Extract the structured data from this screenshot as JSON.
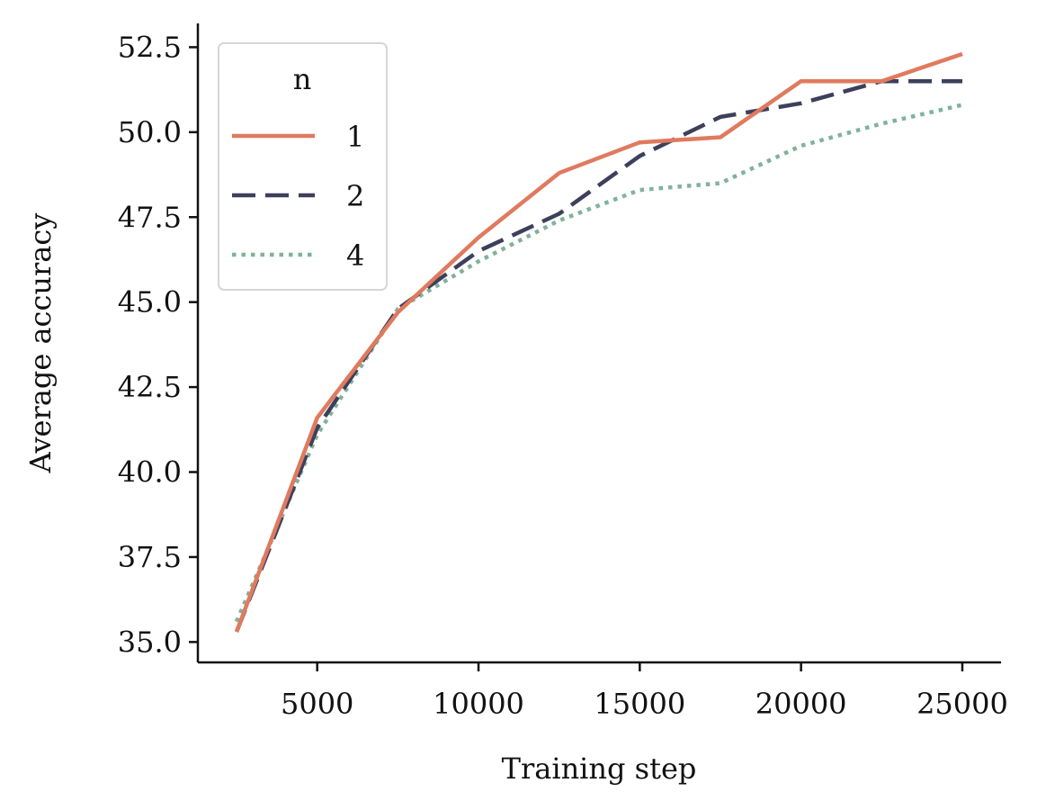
{
  "chart_data": {
    "type": "line",
    "xlabel": "Training step",
    "ylabel": "Average accuracy",
    "xlim": [
      1300,
      26200
    ],
    "ylim": [
      34.4,
      53.2
    ],
    "xticks": [
      5000,
      10000,
      15000,
      20000,
      25000
    ],
    "yticks": [
      35.0,
      37.5,
      40.0,
      42.5,
      45.0,
      47.5,
      50.0,
      52.5
    ],
    "ytick_labels": [
      "35.0",
      "37.5",
      "40.0",
      "42.5",
      "45.0",
      "47.5",
      "50.0",
      "52.5"
    ],
    "grid": false,
    "legend": {
      "title": "n",
      "placement": "top-left"
    },
    "x": [
      2500,
      5000,
      7500,
      10000,
      12500,
      15000,
      17500,
      20000,
      22500,
      25000
    ],
    "series": [
      {
        "name": "1",
        "color": "#e07a5f",
        "dash": "solid",
        "values": [
          35.3,
          41.6,
          44.7,
          46.9,
          48.8,
          49.7,
          49.85,
          51.5,
          51.5,
          52.3
        ]
      },
      {
        "name": "2",
        "color": "#3d405b",
        "dash": "dashed",
        "values": [
          35.3,
          41.3,
          44.8,
          46.5,
          47.6,
          49.3,
          50.45,
          50.85,
          51.5,
          51.5
        ]
      },
      {
        "name": "4",
        "color": "#81b29a",
        "dash": "dotted",
        "values": [
          35.6,
          41.1,
          44.8,
          46.2,
          47.4,
          48.3,
          48.5,
          49.6,
          50.25,
          50.8
        ]
      }
    ]
  }
}
